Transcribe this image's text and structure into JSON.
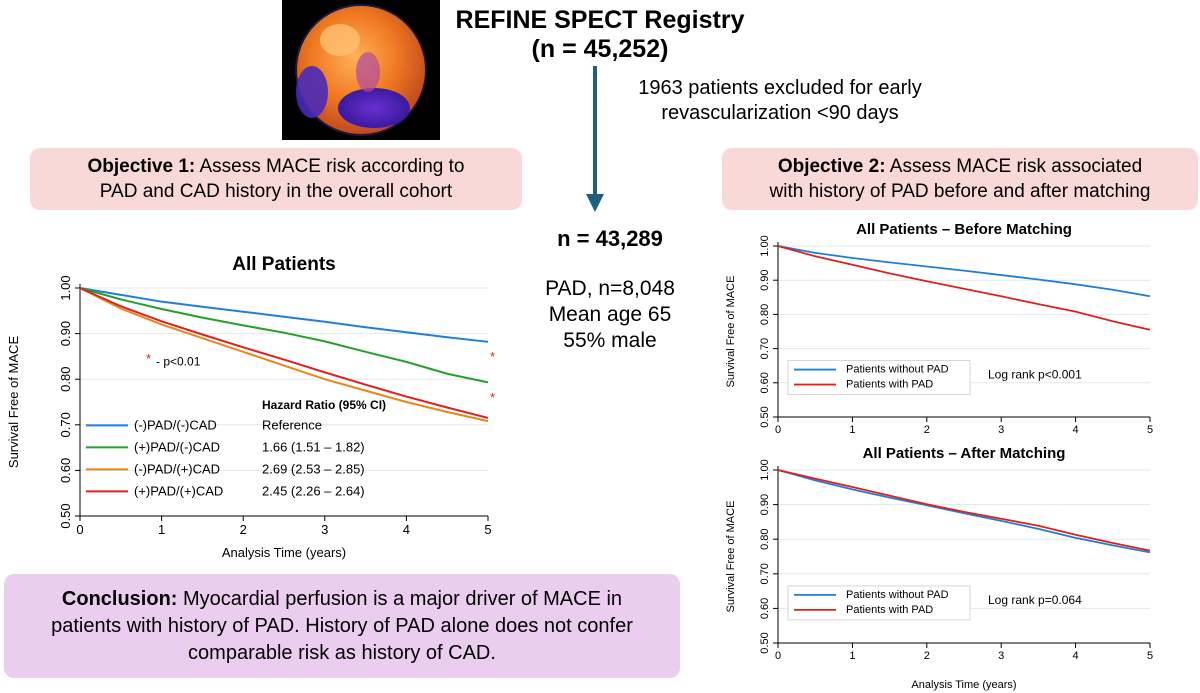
{
  "header": {
    "title_line1": "REFINE SPECT Registry",
    "title_line2": "(n = 45,252)",
    "excluded_line1": "1963 patients excluded for early",
    "excluded_line2": "revascularization <90 days"
  },
  "objective1": {
    "label": "Objective 1:",
    "line1": " Assess MACE risk according to",
    "line2": "PAD and CAD history in the overall cohort"
  },
  "objective2": {
    "label": "Objective 2:",
    "line1": " Assess MACE risk associated",
    "line2": "with history of PAD before and after matching"
  },
  "cohort": {
    "n": "n = 43,289",
    "pad": "PAD, n=8,048",
    "age": "Mean age 65",
    "male": "55% male"
  },
  "conclusion": {
    "label": "Conclusion:",
    "line1": " Myocardial perfusion is a major driver of MACE in",
    "line2": "patients with history of PAD. History of PAD alone does not confer",
    "line3": "comparable risk as history of CAD."
  },
  "colors": {
    "blue": "#1f7fd6",
    "green": "#23a12a",
    "orange": "#e8861a",
    "red": "#e02020",
    "pink_box": "#f9d9d7",
    "lavender_box": "#ebcdef"
  },
  "chart_data": [
    {
      "type": "line",
      "title": "All Patients",
      "xlabel": "Analysis Time (years)",
      "ylabel": "Survival Free of MACE",
      "xlim": [
        0,
        5
      ],
      "ylim": [
        0.5,
        1.0
      ],
      "xticks": [
        "0",
        "1",
        "2",
        "3",
        "4",
        "5"
      ],
      "yticks": [
        "0.50",
        "0.60",
        "0.70",
        "0.80",
        "0.90",
        "1.00"
      ],
      "annotation": "- p<0.01",
      "annotation_star": "*",
      "hr_header": "Hazard Ratio (95% CI)",
      "series": [
        {
          "name": "(-)PAD/(-)CAD",
          "hr": "Reference",
          "color": "#1f7fd6",
          "x": [
            0,
            0.5,
            1,
            1.5,
            2,
            2.5,
            3,
            3.5,
            4,
            4.5,
            5
          ],
          "y": [
            1.0,
            0.985,
            0.97,
            0.959,
            0.948,
            0.937,
            0.926,
            0.914,
            0.903,
            0.892,
            0.882
          ]
        },
        {
          "name": "(+)PAD/(-)CAD",
          "hr": "1.66 (1.51 – 1.82)",
          "color": "#23a12a",
          "x": [
            0,
            0.5,
            1,
            1.5,
            2,
            2.5,
            3,
            3.5,
            4,
            4.5,
            5
          ],
          "y": [
            1.0,
            0.975,
            0.954,
            0.935,
            0.918,
            0.902,
            0.883,
            0.86,
            0.838,
            0.812,
            0.793
          ]
        },
        {
          "name": "(-)PAD/(+)CAD",
          "hr": "2.69 (2.53 – 2.85)",
          "color": "#e8861a",
          "x": [
            0,
            0.5,
            1,
            1.5,
            2,
            2.5,
            3,
            3.5,
            4,
            4.5,
            5
          ],
          "y": [
            1.0,
            0.955,
            0.92,
            0.89,
            0.86,
            0.83,
            0.8,
            0.775,
            0.75,
            0.728,
            0.708
          ]
        },
        {
          "name": "(+)PAD/(+)CAD",
          "hr": "2.45 (2.26 – 2.64)",
          "color": "#e02020",
          "x": [
            0,
            0.5,
            1,
            1.5,
            2,
            2.5,
            3,
            3.5,
            4,
            4.5,
            5
          ],
          "y": [
            1.0,
            0.96,
            0.927,
            0.898,
            0.87,
            0.843,
            0.815,
            0.788,
            0.762,
            0.738,
            0.715
          ]
        }
      ]
    },
    {
      "type": "line",
      "title": "All Patients – Before Matching",
      "xlabel": "",
      "ylabel": "Survival Free of MACE",
      "xlim": [
        0,
        5
      ],
      "ylim": [
        0.5,
        1.0
      ],
      "xticks": [
        "0",
        "1",
        "2",
        "3",
        "4",
        "5"
      ],
      "yticks": [
        "0.50",
        "0.60",
        "0.70",
        "0.80",
        "0.90",
        "1.00"
      ],
      "annotation": "Log rank p<0.001",
      "series": [
        {
          "name": "Patients without PAD",
          "color": "#1f7fd6",
          "x": [
            0,
            0.5,
            1,
            1.5,
            2,
            2.5,
            3,
            3.5,
            4,
            4.5,
            5
          ],
          "y": [
            1.0,
            0.98,
            0.965,
            0.952,
            0.94,
            0.928,
            0.915,
            0.902,
            0.888,
            0.872,
            0.853
          ]
        },
        {
          "name": "Patients with PAD",
          "color": "#e02020",
          "x": [
            0,
            0.5,
            1,
            1.5,
            2,
            2.5,
            3,
            3.5,
            4,
            4.5,
            5
          ],
          "y": [
            1.0,
            0.97,
            0.945,
            0.92,
            0.897,
            0.875,
            0.853,
            0.83,
            0.808,
            0.78,
            0.755
          ]
        }
      ]
    },
    {
      "type": "line",
      "title": "All Patients – After Matching",
      "xlabel": "Analysis Time (years)",
      "ylabel": "Survival Free of MACE",
      "xlim": [
        0,
        5
      ],
      "ylim": [
        0.5,
        1.0
      ],
      "xticks": [
        "0",
        "1",
        "2",
        "3",
        "4",
        "5"
      ],
      "yticks": [
        "0.50",
        "0.60",
        "0.70",
        "0.80",
        "0.90",
        "1.00"
      ],
      "annotation": "Log rank p=0.064",
      "series": [
        {
          "name": "Patients without PAD",
          "color": "#1f7fd6",
          "x": [
            0,
            0.5,
            1,
            1.5,
            2,
            2.5,
            3,
            3.5,
            4,
            4.5,
            5
          ],
          "y": [
            1.0,
            0.97,
            0.944,
            0.92,
            0.898,
            0.875,
            0.853,
            0.83,
            0.804,
            0.782,
            0.762
          ]
        },
        {
          "name": "Patients with PAD",
          "color": "#e02020",
          "x": [
            0,
            0.5,
            1,
            1.5,
            2,
            2.5,
            3,
            3.5,
            4,
            4.5,
            5
          ],
          "y": [
            1.0,
            0.975,
            0.951,
            0.926,
            0.901,
            0.879,
            0.859,
            0.839,
            0.813,
            0.789,
            0.767
          ]
        }
      ]
    }
  ]
}
